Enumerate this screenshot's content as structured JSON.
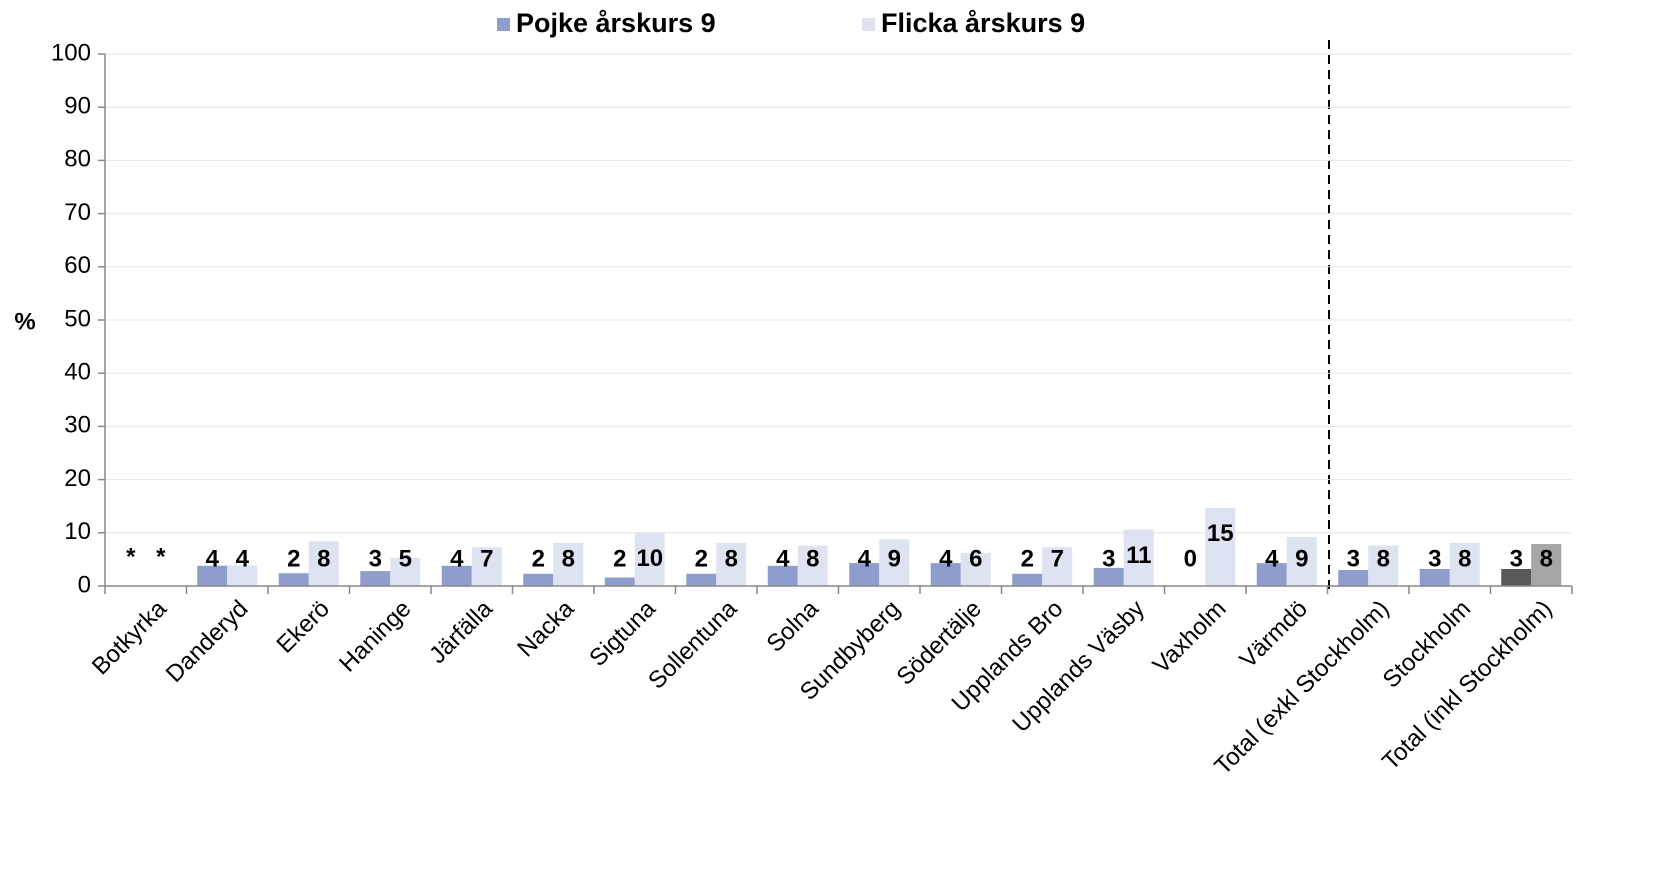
{
  "chart_data": {
    "type": "bar",
    "y_label": "%",
    "categories": [
      "Botkyrka",
      "Danderyd",
      "Ekerö",
      "Haninge",
      "Järfälla",
      "Nacka",
      "Sigtuna",
      "Sollentuna",
      "Solna",
      "Sundbyberg",
      "Södertälje",
      "Upplands Bro",
      "Upplands Väsby",
      "Vaxholm",
      "Värmdö",
      "Total (exkl Stockholm)",
      "Stockholm",
      "Total (inkl Stockholm)"
    ],
    "series": [
      {
        "name": "Pojke årskurs 9",
        "color": "#8e9dcc",
        "colors": [
          "#8e9dcc",
          "#8e9dcc",
          "#8e9dcc",
          "#8e9dcc",
          "#8e9dcc",
          "#8e9dcc",
          "#8e9dcc",
          "#8e9dcc",
          "#8e9dcc",
          "#8e9dcc",
          "#8e9dcc",
          "#8e9dcc",
          "#8e9dcc",
          "#8e9dcc",
          "#8e9dcc",
          "#8e9dcc",
          "#8e9dcc",
          "#595959"
        ],
        "values": [
          null,
          3.8,
          2.4,
          2.8,
          3.8,
          2.3,
          1.6,
          2.3,
          3.8,
          4.3,
          4.3,
          2.3,
          3.4,
          0,
          4.3,
          3.0,
          3.2,
          3.2
        ],
        "value_labels": [
          "*",
          "4",
          "2",
          "3",
          "4",
          "2",
          "2",
          "2",
          "4",
          "4",
          "4",
          "2",
          "3",
          "0",
          "4",
          "3",
          "3",
          "3"
        ]
      },
      {
        "name": "Flicka årskurs 9",
        "color": "#dde3f1",
        "colors": [
          "#dde3f1",
          "#dde3f1",
          "#dde3f1",
          "#dde3f1",
          "#dde3f1",
          "#dde3f1",
          "#dde3f1",
          "#dde3f1",
          "#dde3f1",
          "#dde3f1",
          "#dde3f1",
          "#dde3f1",
          "#dde3f1",
          "#dde3f1",
          "#dde3f1",
          "#dde3f1",
          "#dde3f1",
          "#a6a6a6"
        ],
        "values": [
          null,
          3.9,
          8.4,
          5.3,
          7.3,
          8.1,
          10.0,
          8.1,
          7.6,
          8.8,
          6.2,
          7.3,
          10.6,
          14.7,
          9.2,
          7.6,
          8.1,
          7.9
        ],
        "value_labels": [
          "*",
          "4",
          "8",
          "5",
          "7",
          "8",
          "10",
          "8",
          "8",
          "9",
          "6",
          "7",
          "11",
          "15",
          "9",
          "8",
          "8",
          "8"
        ]
      }
    ],
    "ylim": [
      0,
      100
    ],
    "yticks": [
      0,
      10,
      20,
      30,
      40,
      50,
      60,
      70,
      80,
      90,
      100
    ],
    "grid": true,
    "legend": "top"
  }
}
